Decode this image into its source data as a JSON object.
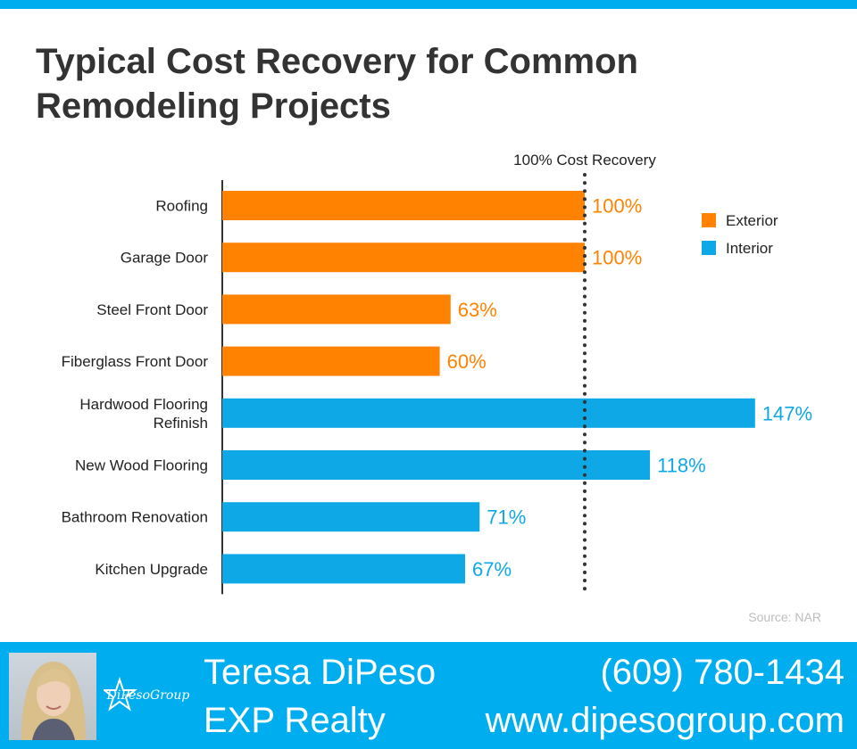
{
  "title": {
    "line1": "Typical Cost Recovery for Common",
    "line2": "Remodeling Projects"
  },
  "chart_data": {
    "type": "bar",
    "orientation": "horizontal",
    "categories": [
      "Roofing",
      "Garage Door",
      "Steel Front Door",
      "Fiberglass Front Door",
      "Hardwood Flooring Refinish",
      "New Wood Flooring",
      "Bathroom Renovation",
      "Kitchen Upgrade"
    ],
    "values": [
      100,
      100,
      63,
      60,
      147,
      118,
      71,
      67
    ],
    "value_labels": [
      "100%",
      "100%",
      "63%",
      "60%",
      "147%",
      "118%",
      "71%",
      "67%"
    ],
    "groups": [
      "Exterior",
      "Exterior",
      "Exterior",
      "Exterior",
      "Interior",
      "Interior",
      "Interior",
      "Interior"
    ],
    "legend": [
      {
        "name": "Exterior",
        "color": "#ff8200"
      },
      {
        "name": "Interior",
        "color": "#0fa8e6"
      }
    ],
    "legend_position": "top-right",
    "reference_line": {
      "value": 100,
      "label": "100% Cost Recovery",
      "style": "dotted"
    },
    "xlim": [
      0,
      147
    ],
    "grid": false
  },
  "source": "Source: NAR",
  "footer": {
    "name": "Teresa DiPeso",
    "company": "EXP Realty",
    "phone": "(609) 780-1434",
    "website": "www.dipesogroup.com",
    "logo_text": "DiPesoGroup",
    "background": "#00aeef"
  }
}
